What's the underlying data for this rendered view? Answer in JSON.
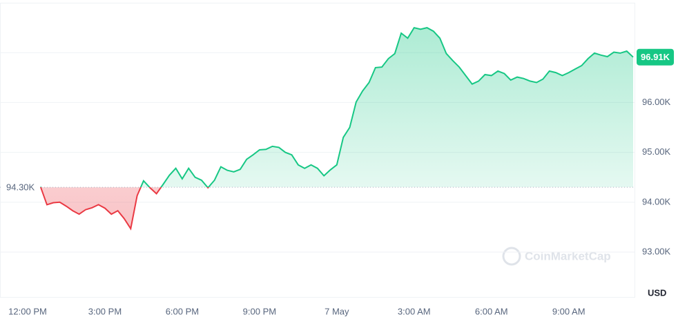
{
  "chart_data": {
    "type": "line",
    "categories": [
      "12:00 PM",
      null,
      null,
      null,
      null,
      null,
      null,
      null,
      null,
      null,
      null,
      null,
      "3:00 PM",
      null,
      null,
      null,
      null,
      null,
      null,
      null,
      null,
      null,
      null,
      null,
      "6:00 PM",
      null,
      null,
      null,
      null,
      null,
      null,
      null,
      null,
      null,
      null,
      null,
      "9:00 PM",
      null,
      null,
      null,
      null,
      null,
      null,
      null,
      null,
      null,
      null,
      null,
      "7 May",
      null,
      null,
      null,
      null,
      null,
      null,
      null,
      null,
      null,
      null,
      null,
      "3:00 AM",
      null,
      null,
      null,
      null,
      null,
      null,
      null,
      null,
      null,
      null,
      null,
      "6:00 AM",
      null,
      null,
      null,
      null,
      null,
      null,
      null,
      null,
      null,
      null,
      null,
      "9:00 AM",
      null,
      null,
      null,
      null,
      null,
      null,
      null,
      null,
      null,
      null
    ],
    "values": [
      null,
      null,
      94.31,
      93.95,
      93.99,
      94.0,
      93.92,
      93.83,
      93.76,
      93.85,
      93.89,
      93.95,
      93.88,
      93.76,
      93.83,
      93.67,
      93.47,
      94.13,
      94.43,
      94.29,
      94.17,
      94.35,
      94.54,
      94.68,
      94.47,
      94.68,
      94.5,
      94.44,
      94.29,
      94.44,
      94.71,
      94.64,
      94.61,
      94.66,
      94.86,
      94.95,
      95.05,
      95.06,
      95.12,
      95.1,
      95.0,
      94.95,
      94.75,
      94.68,
      94.75,
      94.68,
      94.53,
      94.65,
      94.75,
      95.3,
      95.5,
      96.01,
      96.23,
      96.4,
      96.7,
      96.71,
      96.88,
      96.98,
      97.39,
      97.29,
      97.5,
      97.47,
      97.5,
      97.43,
      97.29,
      96.98,
      96.84,
      96.71,
      96.54,
      96.37,
      96.43,
      96.56,
      96.54,
      96.63,
      96.58,
      96.45,
      96.51,
      96.48,
      96.43,
      96.4,
      96.47,
      96.63,
      96.6,
      96.54,
      96.6,
      96.67,
      96.74,
      96.88,
      96.99,
      96.95,
      96.92,
      97.01,
      96.99,
      97.03,
      96.91
    ],
    "ylim": [
      92.1,
      98
    ],
    "yticks": [
      {
        "value": 93,
        "label": "93.00K"
      },
      {
        "value": 94,
        "label": "94.00K"
      },
      {
        "value": 95,
        "label": "95.00K"
      },
      {
        "value": 96,
        "label": "96.00K"
      },
      {
        "value": 97,
        "label": ""
      }
    ],
    "grid": true,
    "baseline": {
      "value": 94.3,
      "label": "94.30K"
    },
    "last_value_label": "96.91K",
    "up_color": "#16c784",
    "down_color": "#ea3943",
    "unit_label": "USD",
    "watermark": "CoinMarketCap"
  }
}
